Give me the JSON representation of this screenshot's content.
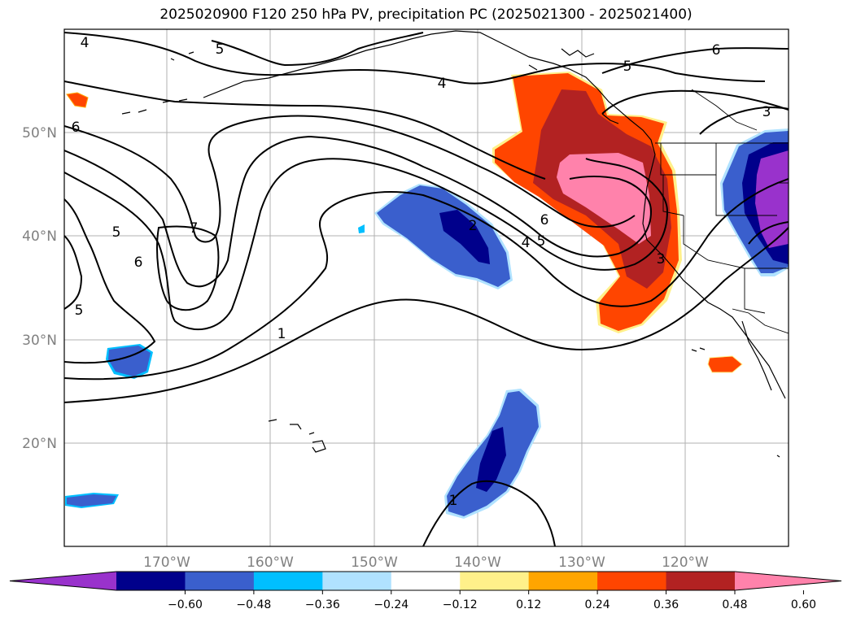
{
  "title": "2025020900 F120 250 hPa PV, precipitation PC (2025021300 - 2025021400)",
  "map": {
    "lon_labels": [
      "170°W",
      "160°W",
      "150°W",
      "140°W",
      "130°W",
      "120°W"
    ],
    "lat_labels": [
      "50°N",
      "40°N",
      "30°N",
      "20°N"
    ],
    "contour_labels": [
      "4",
      "5",
      "4",
      "5",
      "6",
      "3",
      "6",
      "5",
      "7",
      "6",
      "5",
      "3",
      "1",
      "2",
      "4",
      "5",
      "6",
      "1"
    ]
  },
  "colorbar": {
    "colors": [
      "#9932cc",
      "#00008b",
      "#3a5fcd",
      "#00bfff",
      "#b0e2ff",
      "#ffffff",
      "#fff08a",
      "#ffa500",
      "#ff4500",
      "#b22222",
      "#ff82ab"
    ],
    "ticks": [
      "−0.60",
      "−0.48",
      "−0.36",
      "−0.24",
      "−0.12",
      "0.12",
      "0.24",
      "0.36",
      "0.48",
      "0.60"
    ]
  }
}
